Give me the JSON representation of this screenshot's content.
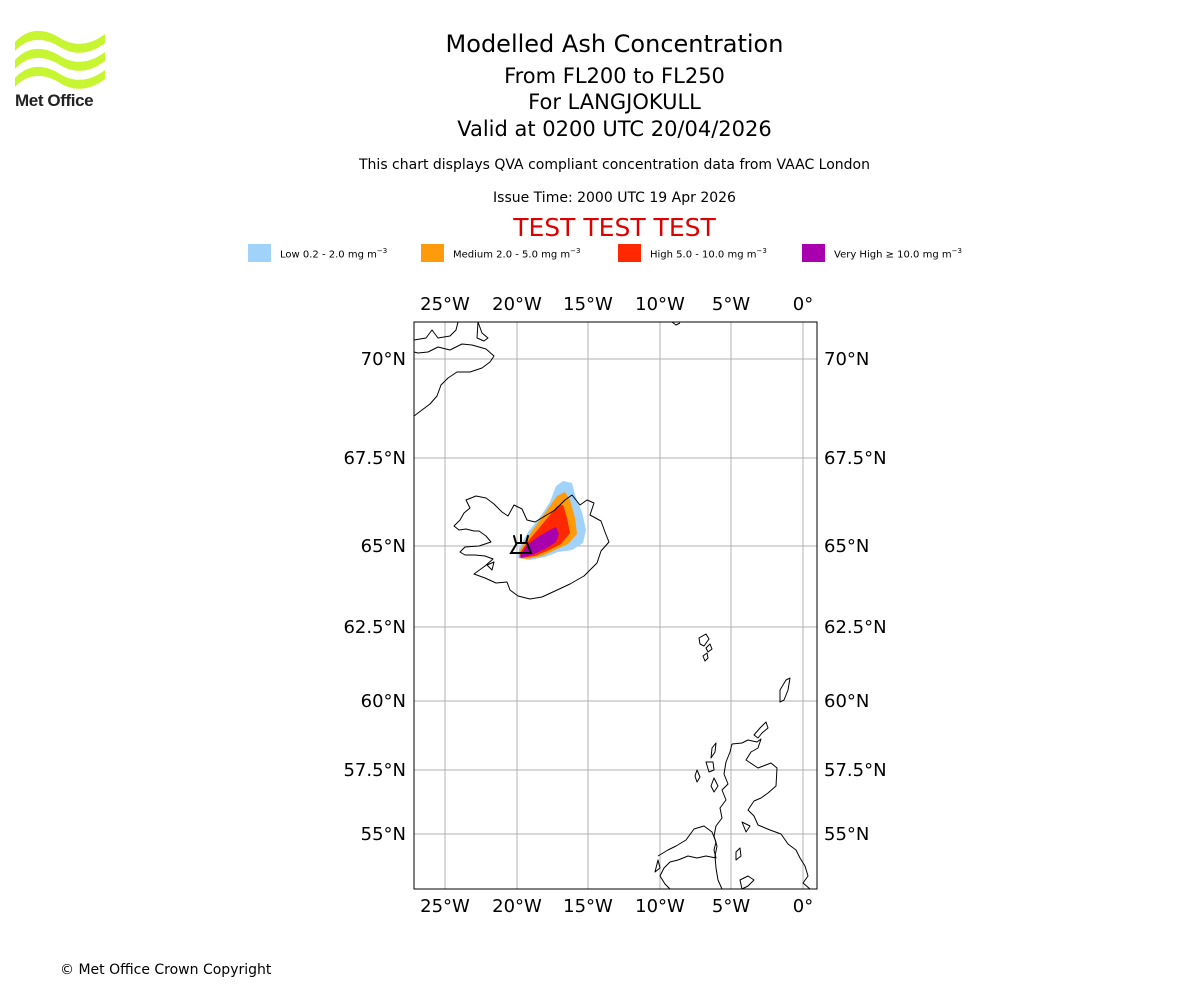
{
  "logo": {
    "text": "Met Office",
    "color": "#c8f531"
  },
  "title": {
    "main": "Modelled Ash Concentration",
    "levels": "From FL200 to FL250",
    "volcano": "For LANGJOKULL",
    "valid": "Valid at 0200 UTC 20/04/2026"
  },
  "subtitle": "This chart displays QVA compliant concentration data from VAAC London",
  "issue_time": "Issue Time: 2000 UTC 19 Apr 2026",
  "test_banner": "TEST TEST TEST",
  "legend": [
    {
      "label": "Low 0.2 - 2.0 mg m",
      "unit_exp": "−3",
      "color": "#a0d2fa"
    },
    {
      "label": "Medium 2.0 - 5.0 mg m",
      "unit_exp": "−3",
      "color": "#ff9a0a"
    },
    {
      "label": "High 5.0 - 10.0 mg m",
      "unit_exp": "−3",
      "color": "#ff2800"
    },
    {
      "label": "Very High ≥ 10.0 mg m",
      "unit_exp": "−3",
      "color": "#a800ae"
    }
  ],
  "map": {
    "lon_labels": [
      "25°W",
      "20°W",
      "15°W",
      "10°W",
      "5°W",
      "0°"
    ],
    "lat_labels": [
      "70°N",
      "67.5°N",
      "65°N",
      "62.5°N",
      "60°N",
      "57.5°N",
      "55°N"
    ]
  },
  "copyright": "© Met Office Crown Copyright"
}
